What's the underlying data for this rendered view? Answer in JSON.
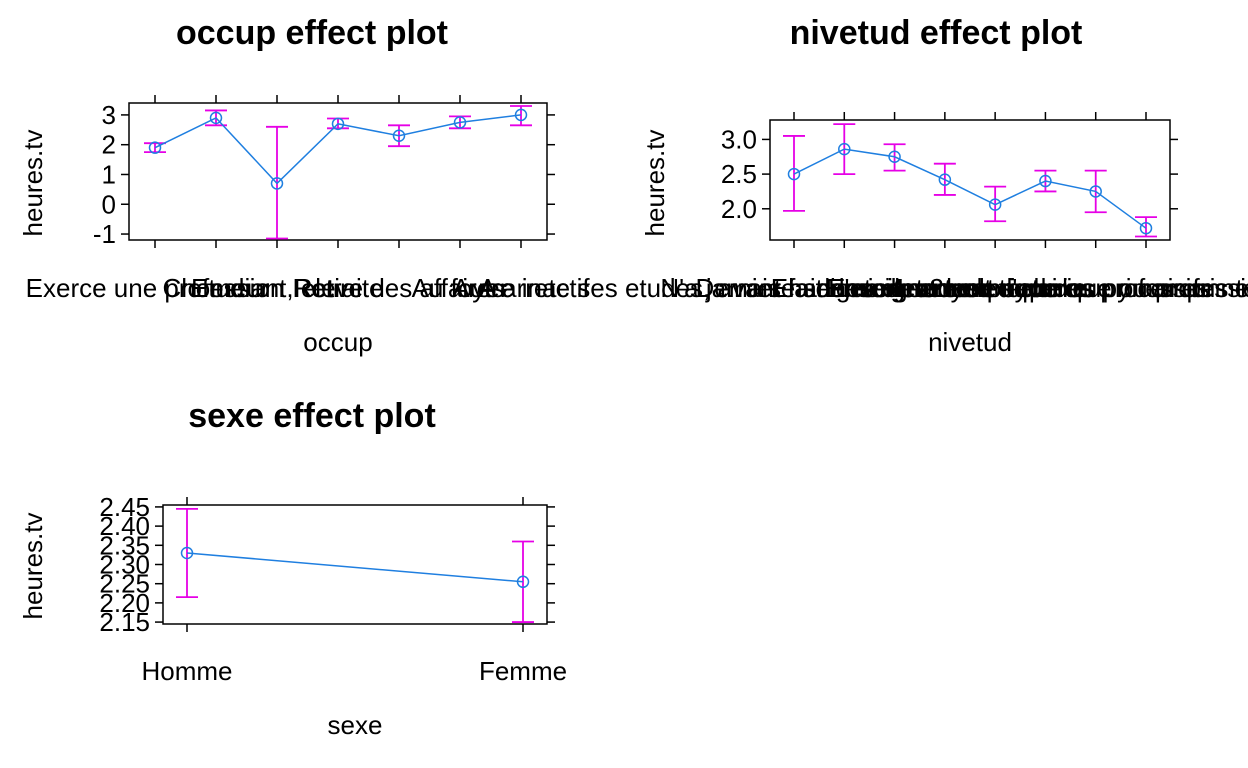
{
  "chart_data": [
    {
      "type": "line",
      "title": "occup effect plot",
      "xlabel": "occup",
      "ylabel": "heures.tv",
      "categories": [
        "Exerce une profession",
        "Chomeur",
        "Etudiant, eleve",
        "Retraite",
        "Retire des affaires",
        "Au foyer",
        "Autre inactif"
      ],
      "values": [
        1.9,
        2.9,
        0.7,
        2.7,
        2.3,
        2.75,
        3.0
      ],
      "lower": [
        1.75,
        2.65,
        -1.15,
        2.55,
        1.95,
        2.55,
        2.65
      ],
      "upper": [
        2.05,
        3.15,
        2.6,
        2.88,
        2.65,
        2.95,
        3.3
      ],
      "yticks": [
        "-1",
        "0",
        "1",
        "2",
        "3"
      ],
      "ylim": [
        -1.2,
        3.4
      ],
      "grid": false
    },
    {
      "type": "line",
      "title": "nivetud effect plot",
      "xlabel": "nivetud",
      "ylabel": "heures.tv",
      "categories": [
        "N'a jamais fait d'etudes",
        "A arrete ses etudes, avant la derniere annee d'etudes primaires",
        "Derniere annee d'etudes primaires",
        "1er cycle",
        "2eme cycle",
        "Enseignement technique ou professionnel court",
        "Enseignement technique ou professionnel long",
        "Enseignement superieur y compris technique superieur"
      ],
      "values": [
        2.5,
        2.86,
        2.75,
        2.42,
        2.06,
        2.4,
        2.25,
        1.72
      ],
      "lower": [
        1.97,
        2.5,
        2.55,
        2.2,
        1.82,
        2.25,
        1.95,
        1.6
      ],
      "upper": [
        3.05,
        3.22,
        2.93,
        2.65,
        2.32,
        2.55,
        2.55,
        1.88
      ],
      "yticks": [
        "2.0",
        "2.5",
        "3.0"
      ],
      "ylim": [
        1.55,
        3.28
      ],
      "grid": false
    },
    {
      "type": "line",
      "title": "sexe effect plot",
      "xlabel": "sexe",
      "ylabel": "heures.tv",
      "categories": [
        "Homme",
        "Femme"
      ],
      "values": [
        2.33,
        2.255
      ],
      "lower": [
        2.215,
        2.15
      ],
      "upper": [
        2.445,
        2.36
      ],
      "yticks": [
        "2.15",
        "2.20",
        "2.25",
        "2.30",
        "2.35",
        "2.40",
        "2.45"
      ],
      "ylim": [
        2.145,
        2.455
      ],
      "grid": false
    }
  ],
  "colors": {
    "line": "#1f7fe0",
    "ci": "#e600e6",
    "frame": "#000000"
  }
}
